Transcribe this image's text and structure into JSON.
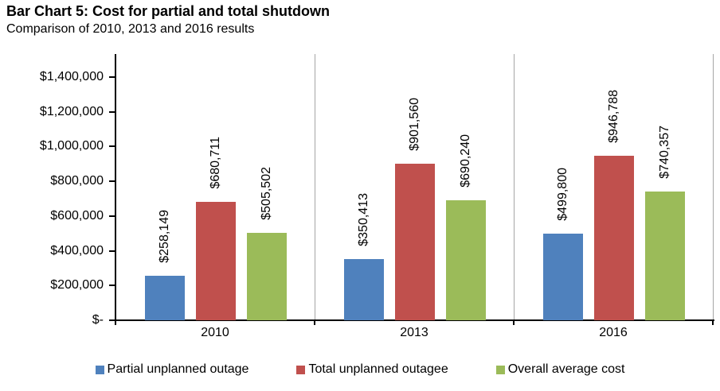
{
  "page": {
    "title": "Bar Chart 5: Cost for partial and total shutdown",
    "subtitle": "Comparison of 2010, 2013 and 2016 results"
  },
  "chart_data": {
    "type": "bar",
    "title": "Bar Chart 5: Cost for partial and total shutdown",
    "subtitle": "Comparison of 2010, 2013 and 2016 results",
    "categories": [
      "2010",
      "2013",
      "2016"
    ],
    "series": [
      {
        "name": "Partial unplanned outage",
        "color": "#4F81BD",
        "values": [
          258149,
          350413,
          499800
        ],
        "labels": [
          "$258,149",
          "$350,413",
          "$499,800"
        ]
      },
      {
        "name": "Total unplanned outagee",
        "color": "#C0504D",
        "values": [
          680711,
          901560,
          946788
        ],
        "labels": [
          "$680,711",
          "$901,560",
          "$946,788"
        ]
      },
      {
        "name": "Overall average cost",
        "color": "#9BBB59",
        "values": [
          505502,
          690240,
          740357
        ],
        "labels": [
          "$505,502",
          "$690,240",
          "$740,357"
        ]
      }
    ],
    "y_ticks": [
      "$1,400,000",
      "$1,200,000",
      "$1,000,000",
      "$800,000",
      "$600,000",
      "$400,000",
      "$200,000",
      "$-"
    ],
    "y_tick_values": [
      1400000,
      1200000,
      1000000,
      800000,
      600000,
      400000,
      200000,
      0
    ],
    "ylim": [
      0,
      1533000
    ],
    "xlabel": "",
    "ylabel": "",
    "grid": "vertical-category-separators-only",
    "data_label_rotation": 90,
    "legend_position": "bottom"
  }
}
